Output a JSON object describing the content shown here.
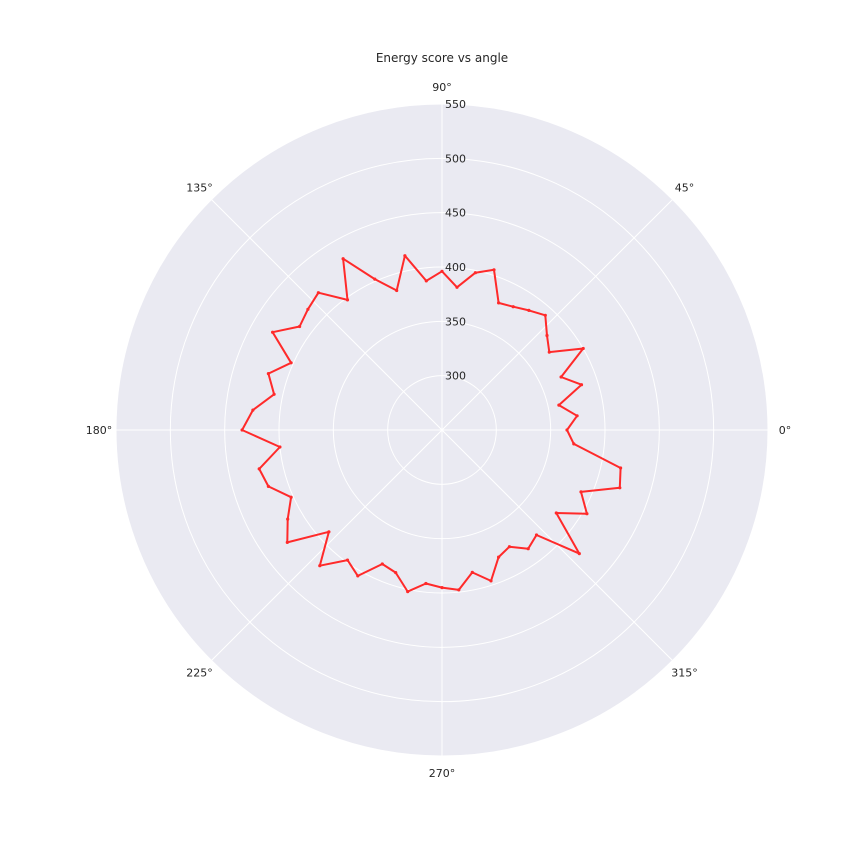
{
  "chart_data": {
    "type": "line",
    "projection": "polar",
    "title": "Energy score vs angle",
    "angle_unit": "degrees",
    "theta_tick_labels": [
      "0°",
      "45°",
      "90°",
      "135°",
      "180°",
      "225°",
      "270°",
      "315°"
    ],
    "theta_ticks": [
      0,
      45,
      90,
      135,
      180,
      225,
      270,
      315
    ],
    "r_tick_labels": [
      "300",
      "350",
      "400",
      "450",
      "500",
      "550"
    ],
    "r_ticks": [
      300,
      350,
      400,
      450,
      500,
      550
    ],
    "rlim": [
      250,
      550
    ],
    "grid": true,
    "background_color": "#eaeaf2",
    "grid_color": "#ffffff",
    "series": [
      {
        "color": "#ff2a2a",
        "theta": [
          0,
          6,
          12,
          18,
          24,
          30,
          36,
          42,
          48,
          54,
          60,
          66,
          72,
          78,
          84,
          90,
          96,
          102,
          108,
          114,
          120,
          126,
          132,
          138,
          144,
          150,
          156,
          162,
          168,
          174,
          180,
          186,
          192,
          198,
          204,
          210,
          216,
          222,
          228,
          234,
          240,
          246,
          252,
          258,
          264,
          270,
          276,
          282,
          288,
          294,
          300,
          306,
          312,
          318,
          324,
          330,
          336,
          342,
          348,
          354
        ],
        "r": [
          365,
          375,
          360,
          385,
          370,
          400,
          372,
          380,
          392,
          386,
          381,
          378,
          405,
          398,
          382,
          396,
          388,
          414,
          385,
          402,
          432,
          398,
          420,
          416,
          412,
          430,
          402,
          418,
          408,
          425,
          434,
          400,
          422,
          418,
          402,
          414,
          426,
          390,
          418,
          398,
          405,
          385,
          388,
          402,
          392,
          395,
          398,
          384,
          396,
          378,
          374,
          385,
          380,
          420,
          380,
          404,
          390,
          422,
          418,
          372
        ]
      }
    ]
  }
}
